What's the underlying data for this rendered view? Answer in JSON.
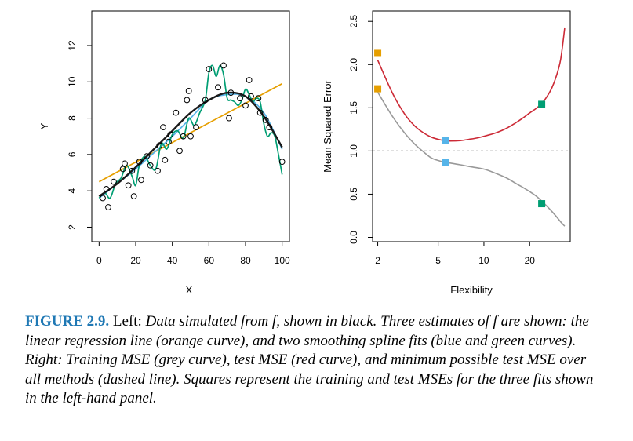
{
  "figure": {
    "caption_label": "FIGURE 2.9.",
    "caption_lead": " Left: ",
    "caption_body": "Data simulated from f, shown in black. Three estimates of f are shown: the linear regression line (orange curve), and two smoothing spline fits (blue and green curves). Right: Training MSE (grey curve), test MSE (red curve), and minimum possible test MSE over all methods (dashed line). Squares represent the training and test MSEs for the three fits shown in the left-hand panel."
  },
  "colors": {
    "orange": "#E69F00",
    "blue": "#56B4E9",
    "green": "#009E73",
    "black": "#1a1a1a",
    "red": "#CC2A36",
    "grey": "#999999"
  },
  "chart_data": [
    {
      "type": "scatter",
      "xlabel": "X",
      "ylabel": "Y",
      "xlim": [
        -4,
        104
      ],
      "ylim": [
        1.2,
        13.9
      ],
      "xticks": [
        "0",
        "20",
        "40",
        "60",
        "80",
        "100"
      ],
      "yticks": [
        "2",
        "4",
        "6",
        "8",
        "10",
        "12"
      ],
      "points": {
        "x": [
          2,
          4,
          5,
          8,
          13,
          14,
          16,
          18,
          19,
          22,
          23,
          26,
          28,
          32,
          33,
          35,
          36,
          38,
          39,
          42,
          44,
          46,
          48,
          49,
          50,
          53,
          58,
          60,
          65,
          68,
          71,
          72,
          77,
          80,
          82,
          83,
          87,
          88,
          91,
          93,
          100
        ],
        "y": [
          3.6,
          4.1,
          3.1,
          4.5,
          5.2,
          5.5,
          4.3,
          5.1,
          3.7,
          5.6,
          4.6,
          5.9,
          5.4,
          5.1,
          6.5,
          7.5,
          5.7,
          6.7,
          7.1,
          8.3,
          6.2,
          7.0,
          9.0,
          9.5,
          7.0,
          7.5,
          9.0,
          10.7,
          9.7,
          10.9,
          8.0,
          9.4,
          9.1,
          8.7,
          10.1,
          9.2,
          9.1,
          8.3,
          7.9,
          7.5,
          5.6
        ]
      },
      "series": [
        {
          "name": "true f",
          "color": "black",
          "x": [
            0,
            10,
            20,
            30,
            40,
            50,
            60,
            70,
            80,
            90,
            100
          ],
          "y": [
            3.7,
            4.4,
            5.3,
            6.3,
            7.3,
            8.3,
            9.0,
            9.4,
            9.2,
            8.1,
            6.4
          ]
        },
        {
          "name": "linear regression",
          "color": "orange",
          "x": [
            0,
            100
          ],
          "y": [
            4.5,
            9.9
          ]
        },
        {
          "name": "smoothing spline (blue)",
          "color": "blue",
          "x": [
            0,
            10,
            20,
            30,
            40,
            50,
            60,
            70,
            80,
            90,
            100
          ],
          "y": [
            3.6,
            4.4,
            5.2,
            6.1,
            7.0,
            8.0,
            9.0,
            9.3,
            9.2,
            8.3,
            6.3
          ]
        },
        {
          "name": "smoothing spline (green)",
          "color": "green",
          "x": [
            0,
            3,
            6,
            9,
            12,
            15,
            18,
            20,
            22,
            25,
            28,
            31,
            34,
            37,
            40,
            43,
            46,
            49,
            52,
            55,
            58,
            60,
            62,
            64,
            66,
            68,
            70,
            72,
            74,
            76,
            78,
            80,
            82,
            84,
            86,
            88,
            90,
            92,
            94,
            96,
            98,
            100
          ],
          "y": [
            3.6,
            3.9,
            3.6,
            4.4,
            4.7,
            5.4,
            4.8,
            4.3,
            5.4,
            5.9,
            5.4,
            5.2,
            6.6,
            6.3,
            7.1,
            7.3,
            6.9,
            8.0,
            7.6,
            8.3,
            9.0,
            10.5,
            10.9,
            10.3,
            10.9,
            10.4,
            9.1,
            9.0,
            8.9,
            8.7,
            9.0,
            9.6,
            9.3,
            8.9,
            9.1,
            8.9,
            7.7,
            7.0,
            7.2,
            7.0,
            6.0,
            4.9
          ]
        }
      ]
    },
    {
      "type": "line",
      "xlabel": "Flexibility",
      "ylabel": "Mean Squared Error",
      "xscale": "log",
      "xlim": [
        1.85,
        37
      ],
      "ylim": [
        -0.05,
        2.62
      ],
      "xticks": [
        2,
        5,
        10,
        20
      ],
      "yticks": [
        "0.0",
        "0.5",
        "1.0",
        "1.5",
        "2.0",
        "2.5"
      ],
      "series": [
        {
          "name": "test MSE",
          "color": "red",
          "x": [
            2,
            2.5,
            3,
            3.5,
            4,
            4.5,
            5,
            5.5,
            6,
            7,
            8,
            9,
            10,
            12,
            14,
            16,
            18,
            20,
            22,
            24,
            26,
            28,
            30,
            32,
            34
          ],
          "y": [
            2.05,
            1.67,
            1.43,
            1.29,
            1.21,
            1.16,
            1.135,
            1.12,
            1.115,
            1.12,
            1.135,
            1.15,
            1.17,
            1.21,
            1.26,
            1.32,
            1.38,
            1.44,
            1.49,
            1.55,
            1.63,
            1.73,
            1.87,
            2.06,
            2.42
          ]
        },
        {
          "name": "training MSE",
          "color": "grey",
          "x": [
            2,
            2.5,
            3,
            3.5,
            4,
            4.5,
            5,
            5.5,
            6,
            7,
            8,
            10,
            12,
            14,
            16,
            18,
            20,
            22,
            24,
            26,
            28,
            30,
            32,
            34
          ],
          "y": [
            1.68,
            1.4,
            1.21,
            1.08,
            0.99,
            0.92,
            0.89,
            0.87,
            0.86,
            0.84,
            0.82,
            0.79,
            0.74,
            0.69,
            0.63,
            0.58,
            0.53,
            0.48,
            0.42,
            0.36,
            0.3,
            0.24,
            0.18,
            0.13
          ]
        }
      ],
      "reference_line": {
        "y": 1.0,
        "style": "dashed",
        "name": "minimum possible test MSE"
      },
      "squares": [
        {
          "x": 2,
          "y": 2.13,
          "color": "orange"
        },
        {
          "x": 2,
          "y": 1.72,
          "color": "orange"
        },
        {
          "x": 5.6,
          "y": 1.12,
          "color": "blue"
        },
        {
          "x": 5.6,
          "y": 0.87,
          "color": "blue"
        },
        {
          "x": 24,
          "y": 1.54,
          "color": "green"
        },
        {
          "x": 24,
          "y": 0.39,
          "color": "green"
        }
      ]
    }
  ]
}
